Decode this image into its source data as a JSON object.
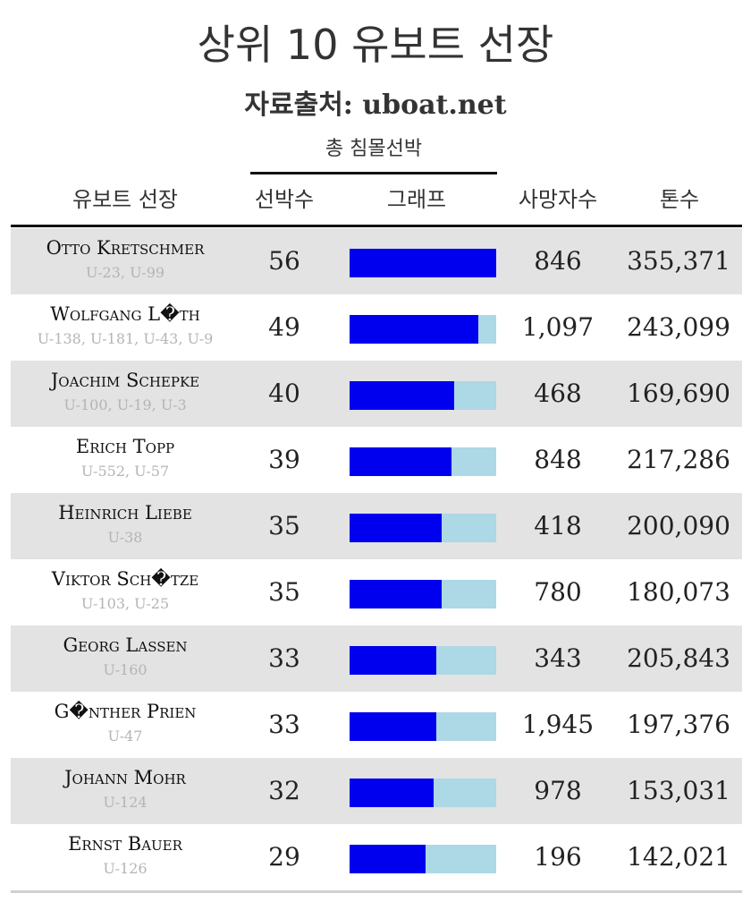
{
  "title": "상위 10 유보트 선장",
  "subtitle": "자료출처: uboat.net",
  "spanner_label": "총 침몰선박",
  "columns": {
    "captain": "유보트 선장",
    "ships": "선박수",
    "graph": "그래프",
    "deaths": "사망자수",
    "tonnage": "톤수"
  },
  "colors": {
    "bar": "#0000ee",
    "track": "#add8e6",
    "row_shade": "#e3e3e3"
  },
  "chart_data": {
    "type": "table",
    "title": "상위 10 유보트 선장",
    "subtitle": "자료출처: uboat.net",
    "graph_max": 56,
    "rows": [
      {
        "name": "Otto Kretschmer",
        "boats": "U-23, U-99",
        "ships": 56,
        "deaths": "846",
        "tonnage": "355,371"
      },
      {
        "name": "Wolfgang L�th",
        "boats": "U-138, U-181, U-43, U-9",
        "ships": 49,
        "deaths": "1,097",
        "tonnage": "243,099"
      },
      {
        "name": "Joachim Schepke",
        "boats": "U-100, U-19, U-3",
        "ships": 40,
        "deaths": "468",
        "tonnage": "169,690"
      },
      {
        "name": "Erich Topp",
        "boats": "U-552, U-57",
        "ships": 39,
        "deaths": "848",
        "tonnage": "217,286"
      },
      {
        "name": "Heinrich Liebe",
        "boats": "U-38",
        "ships": 35,
        "deaths": "418",
        "tonnage": "200,090"
      },
      {
        "name": "Viktor Sch�tze",
        "boats": "U-103, U-25",
        "ships": 35,
        "deaths": "780",
        "tonnage": "180,073"
      },
      {
        "name": "Georg Lassen",
        "boats": "U-160",
        "ships": 33,
        "deaths": "343",
        "tonnage": "205,843"
      },
      {
        "name": "G�nther Prien",
        "boats": "U-47",
        "ships": 33,
        "deaths": "1,945",
        "tonnage": "197,376"
      },
      {
        "name": "Johann Mohr",
        "boats": "U-124",
        "ships": 32,
        "deaths": "978",
        "tonnage": "153,031"
      },
      {
        "name": "Ernst Bauer",
        "boats": "U-126",
        "ships": 29,
        "deaths": "196",
        "tonnage": "142,021"
      }
    ]
  }
}
